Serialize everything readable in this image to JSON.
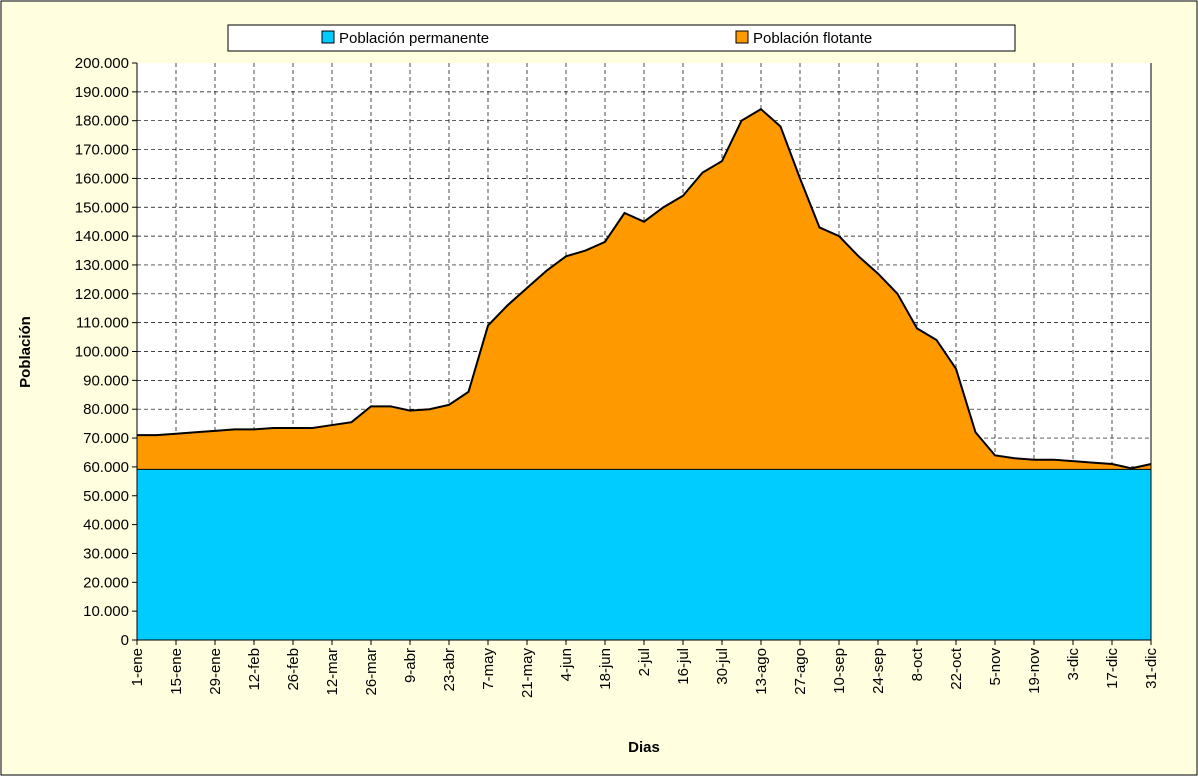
{
  "chart_data": {
    "type": "stacked_area",
    "y_label": "Población",
    "x_label": "Dias",
    "categories": [
      "1-ene",
      null,
      "15-ene",
      null,
      "29-ene",
      null,
      "12-feb",
      null,
      "26-feb",
      null,
      "12-mar",
      null,
      "26-mar",
      null,
      "9-abr",
      null,
      "23-abr",
      null,
      "7-may",
      null,
      "21-may",
      null,
      "4-jun",
      null,
      "18-jun",
      null,
      "2-jul",
      null,
      "16-jul",
      null,
      "30-jul",
      null,
      "13-ago",
      null,
      "27-ago",
      null,
      "10-sep",
      null,
      "24-sep",
      null,
      "8-oct",
      null,
      "22-oct",
      null,
      "5-nov",
      null,
      "19-nov",
      null,
      "3-dic",
      null,
      "17-dic",
      null,
      "31-dic"
    ],
    "series": [
      {
        "name": "Población permanente",
        "color": "#00ccff",
        "values": [
          59300,
          59300,
          59300,
          59300,
          59300,
          59300,
          59300,
          59300,
          59300,
          59300,
          59300,
          59300,
          59300,
          59300,
          59300,
          59300,
          59300,
          59300,
          59300,
          59300,
          59300,
          59300,
          59300,
          59300,
          59300,
          59300,
          59300,
          59300,
          59300,
          59300,
          59300,
          59300,
          59300,
          59300,
          59300,
          59300,
          59300,
          59300,
          59300,
          59300,
          59300,
          59300,
          59300,
          59300,
          59300,
          59300,
          59300,
          59300,
          59300,
          59300,
          59300,
          59300,
          59300
        ]
      },
      {
        "name": "Población flotante",
        "color": "#ff9900",
        "values": [
          11700,
          11700,
          12200,
          12700,
          13200,
          13700,
          13700,
          14200,
          14200,
          14200,
          15200,
          16200,
          21700,
          21700,
          20200,
          20700,
          22200,
          26700,
          49700,
          56700,
          62700,
          68700,
          73700,
          75700,
          78700,
          88700,
          85700,
          90700,
          94700,
          102700,
          106700,
          120700,
          124700,
          118700,
          100700,
          83700,
          80700,
          73700,
          67700,
          60700,
          48700,
          44700,
          34700,
          12700,
          4700,
          3700,
          3200,
          3200,
          2700,
          2200,
          1700,
          200,
          1700
        ]
      }
    ],
    "ylim": [
      0,
      200000
    ],
    "yticks": [
      0,
      {
        "value": 10000,
        "label": "10.000"
      },
      {
        "value": 20000,
        "label": "20.000"
      },
      {
        "value": 30000,
        "label": "30.000"
      },
      {
        "value": 40000,
        "label": "40.000"
      },
      {
        "value": 50000,
        "label": "50.000"
      },
      {
        "value": 60000,
        "label": "60.000"
      },
      {
        "value": 70000,
        "label": "70.000"
      },
      {
        "value": 80000,
        "label": "80.000"
      },
      {
        "value": 90000,
        "label": "90.000"
      },
      {
        "value": 100000,
        "label": "100.000"
      },
      {
        "value": 110000,
        "label": "110.000"
      },
      {
        "value": 120000,
        "label": "120.000"
      },
      {
        "value": 130000,
        "label": "130.000"
      },
      {
        "value": 140000,
        "label": "140.000"
      },
      {
        "value": 150000,
        "label": "150.000"
      },
      {
        "value": 160000,
        "label": "160.000"
      },
      {
        "value": 170000,
        "label": "170.000"
      },
      {
        "value": 180000,
        "label": "180.000"
      },
      {
        "value": 190000,
        "label": "190.000"
      },
      {
        "value": 200000,
        "label": "200.000"
      }
    ],
    "grid": true,
    "legend": "top"
  }
}
